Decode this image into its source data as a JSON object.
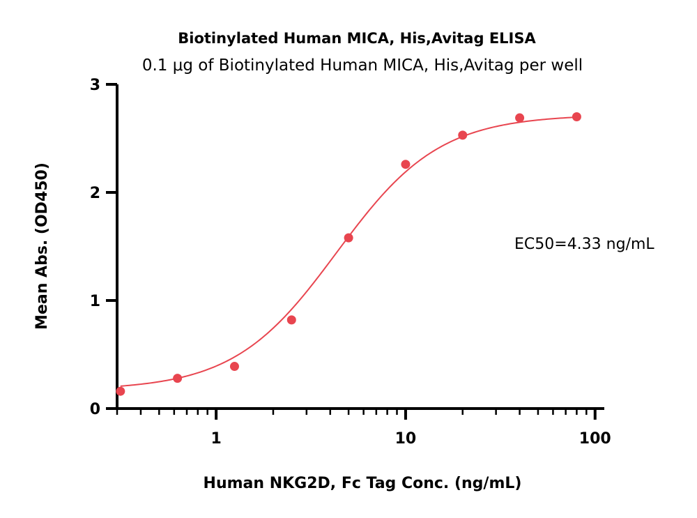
{
  "chart_data": {
    "type": "scatter",
    "title": "Biotinylated Human MICA, His,Avitag ELISA",
    "subtitle": "0.1 μg of Biotinylated Human MICA, His,Avitag per well",
    "xlabel": "Human NKG2D, Fc Tag  Conc. (ng/mL)",
    "ylabel": "Mean Abs. (OD450)",
    "x_scale": "log",
    "xlim": [
      0.3,
      110
    ],
    "ylim": [
      0,
      3
    ],
    "x_ticks": [
      "1",
      "10",
      "100"
    ],
    "y_ticks": [
      "0",
      "1",
      "2",
      "3"
    ],
    "series": [
      {
        "color": "#e8454f",
        "x": [
          0.3125,
          0.625,
          1.25,
          2.5,
          5,
          10,
          20,
          40,
          80
        ],
        "y": [
          0.16,
          0.28,
          0.39,
          0.82,
          1.58,
          2.26,
          2.53,
          2.69,
          2.7
        ]
      }
    ],
    "fit": {
      "bottom": 0.17,
      "top": 2.72,
      "ec50": 4.33,
      "hill": 1.6
    },
    "annotations": [
      "EC50=4.33 ng/mL"
    ],
    "grid": false
  }
}
